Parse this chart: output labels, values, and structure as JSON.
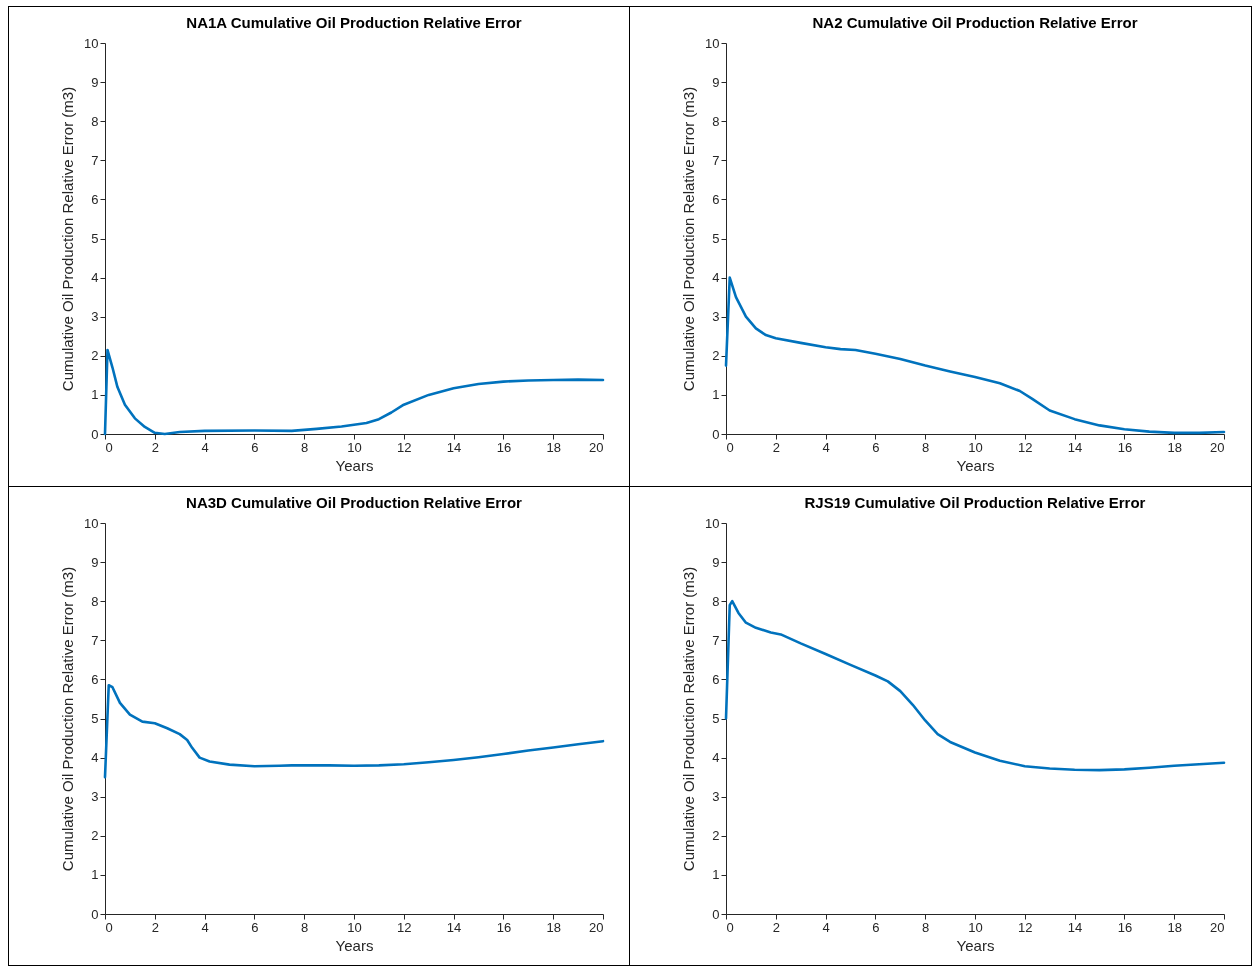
{
  "chart_data": [
    {
      "type": "line",
      "title": "NA1A Cumulative Oil Production Relative Error",
      "xlabel": "Years",
      "ylabel": "Cumulative Oil Production Relative Error (m3)",
      "xlim": [
        0,
        20
      ],
      "ylim": [
        0,
        10
      ],
      "xticks": [
        0,
        2,
        4,
        6,
        8,
        10,
        12,
        14,
        16,
        18,
        20
      ],
      "yticks": [
        0,
        1,
        2,
        3,
        4,
        5,
        6,
        7,
        8,
        9,
        10
      ],
      "grid": false,
      "series": [
        {
          "color": "#0072bd",
          "x": [
            0,
            0.1,
            0.3,
            0.5,
            0.8,
            1.2,
            1.6,
            2,
            2.4,
            3,
            4,
            6,
            7.5,
            8.5,
            9.5,
            10.5,
            11,
            11.5,
            12,
            13,
            14,
            15,
            16,
            17,
            18,
            19,
            20
          ],
          "values": [
            0,
            2.15,
            1.7,
            1.2,
            0.75,
            0.4,
            0.18,
            0.03,
            0,
            0.05,
            0.08,
            0.09,
            0.08,
            0.13,
            0.19,
            0.28,
            0.38,
            0.55,
            0.75,
            1.0,
            1.17,
            1.28,
            1.34,
            1.37,
            1.38,
            1.39,
            1.38
          ]
        }
      ]
    },
    {
      "type": "line",
      "title": "NA2 Cumulative Oil Production Relative Error",
      "xlabel": "Years",
      "ylabel": "Cumulative Oil Production Relative Error (m3)",
      "xlim": [
        0,
        20
      ],
      "ylim": [
        0,
        10
      ],
      "xticks": [
        0,
        2,
        4,
        6,
        8,
        10,
        12,
        14,
        16,
        18,
        20
      ],
      "yticks": [
        0,
        1,
        2,
        3,
        4,
        5,
        6,
        7,
        8,
        9,
        10
      ],
      "grid": false,
      "series": [
        {
          "color": "#0072bd",
          "x": [
            0,
            0.15,
            0.4,
            0.8,
            1.2,
            1.6,
            2,
            3,
            4,
            4.6,
            5.2,
            6,
            7,
            8,
            9,
            10,
            11,
            11.8,
            12.3,
            13,
            14,
            15,
            16,
            17,
            18,
            19,
            20
          ],
          "values": [
            1.75,
            4.0,
            3.5,
            3.0,
            2.7,
            2.53,
            2.45,
            2.33,
            2.22,
            2.17,
            2.15,
            2.05,
            1.92,
            1.75,
            1.6,
            1.46,
            1.3,
            1.1,
            0.9,
            0.6,
            0.38,
            0.22,
            0.12,
            0.06,
            0.03,
            0.03,
            0.05
          ]
        }
      ]
    },
    {
      "type": "line",
      "title": "NA3D Cumulative Oil Production Relative Error",
      "xlabel": "Years",
      "ylabel": "Cumulative Oil Production Relative Error (m3)",
      "xlim": [
        0,
        20
      ],
      "ylim": [
        0,
        10
      ],
      "xticks": [
        0,
        2,
        4,
        6,
        8,
        10,
        12,
        14,
        16,
        18,
        20
      ],
      "yticks": [
        0,
        1,
        2,
        3,
        4,
        5,
        6,
        7,
        8,
        9,
        10
      ],
      "grid": false,
      "series": [
        {
          "color": "#0072bd",
          "x": [
            0,
            0.15,
            0.3,
            0.6,
            1,
            1.5,
            2,
            2.5,
            3,
            3.3,
            3.5,
            3.8,
            4.2,
            5,
            6,
            7,
            7.5,
            9,
            10,
            11,
            12,
            13,
            14,
            15,
            16,
            17,
            18,
            19,
            20
          ],
          "values": [
            3.5,
            5.85,
            5.8,
            5.4,
            5.1,
            4.92,
            4.88,
            4.75,
            4.6,
            4.45,
            4.25,
            4.0,
            3.9,
            3.82,
            3.78,
            3.79,
            3.8,
            3.8,
            3.79,
            3.8,
            3.83,
            3.88,
            3.94,
            4.01,
            4.09,
            4.18,
            4.26,
            4.34,
            4.42
          ]
        }
      ]
    },
    {
      "type": "line",
      "title": "RJS19 Cumulative Oil Production Relative Error",
      "xlabel": "Years",
      "ylabel": "Cumulative Oil Production Relative Error (m3)",
      "xlim": [
        0,
        20
      ],
      "ylim": [
        0,
        10
      ],
      "xticks": [
        0,
        2,
        4,
        6,
        8,
        10,
        12,
        14,
        16,
        18,
        20
      ],
      "yticks": [
        0,
        1,
        2,
        3,
        4,
        5,
        6,
        7,
        8,
        9,
        10
      ],
      "grid": false,
      "series": [
        {
          "color": "#0072bd",
          "x": [
            0,
            0.15,
            0.25,
            0.5,
            0.8,
            1.2,
            1.8,
            2.2,
            3,
            4,
            5,
            6,
            6.5,
            7,
            7.5,
            8,
            8.5,
            9,
            10,
            11,
            12,
            13,
            14,
            15,
            16,
            17,
            18,
            19,
            20
          ],
          "values": [
            5.0,
            7.9,
            8.0,
            7.7,
            7.45,
            7.32,
            7.2,
            7.15,
            6.92,
            6.65,
            6.37,
            6.1,
            5.95,
            5.7,
            5.35,
            4.95,
            4.6,
            4.4,
            4.13,
            3.92,
            3.78,
            3.72,
            3.69,
            3.68,
            3.7,
            3.74,
            3.79,
            3.83,
            3.87
          ]
        }
      ]
    }
  ]
}
